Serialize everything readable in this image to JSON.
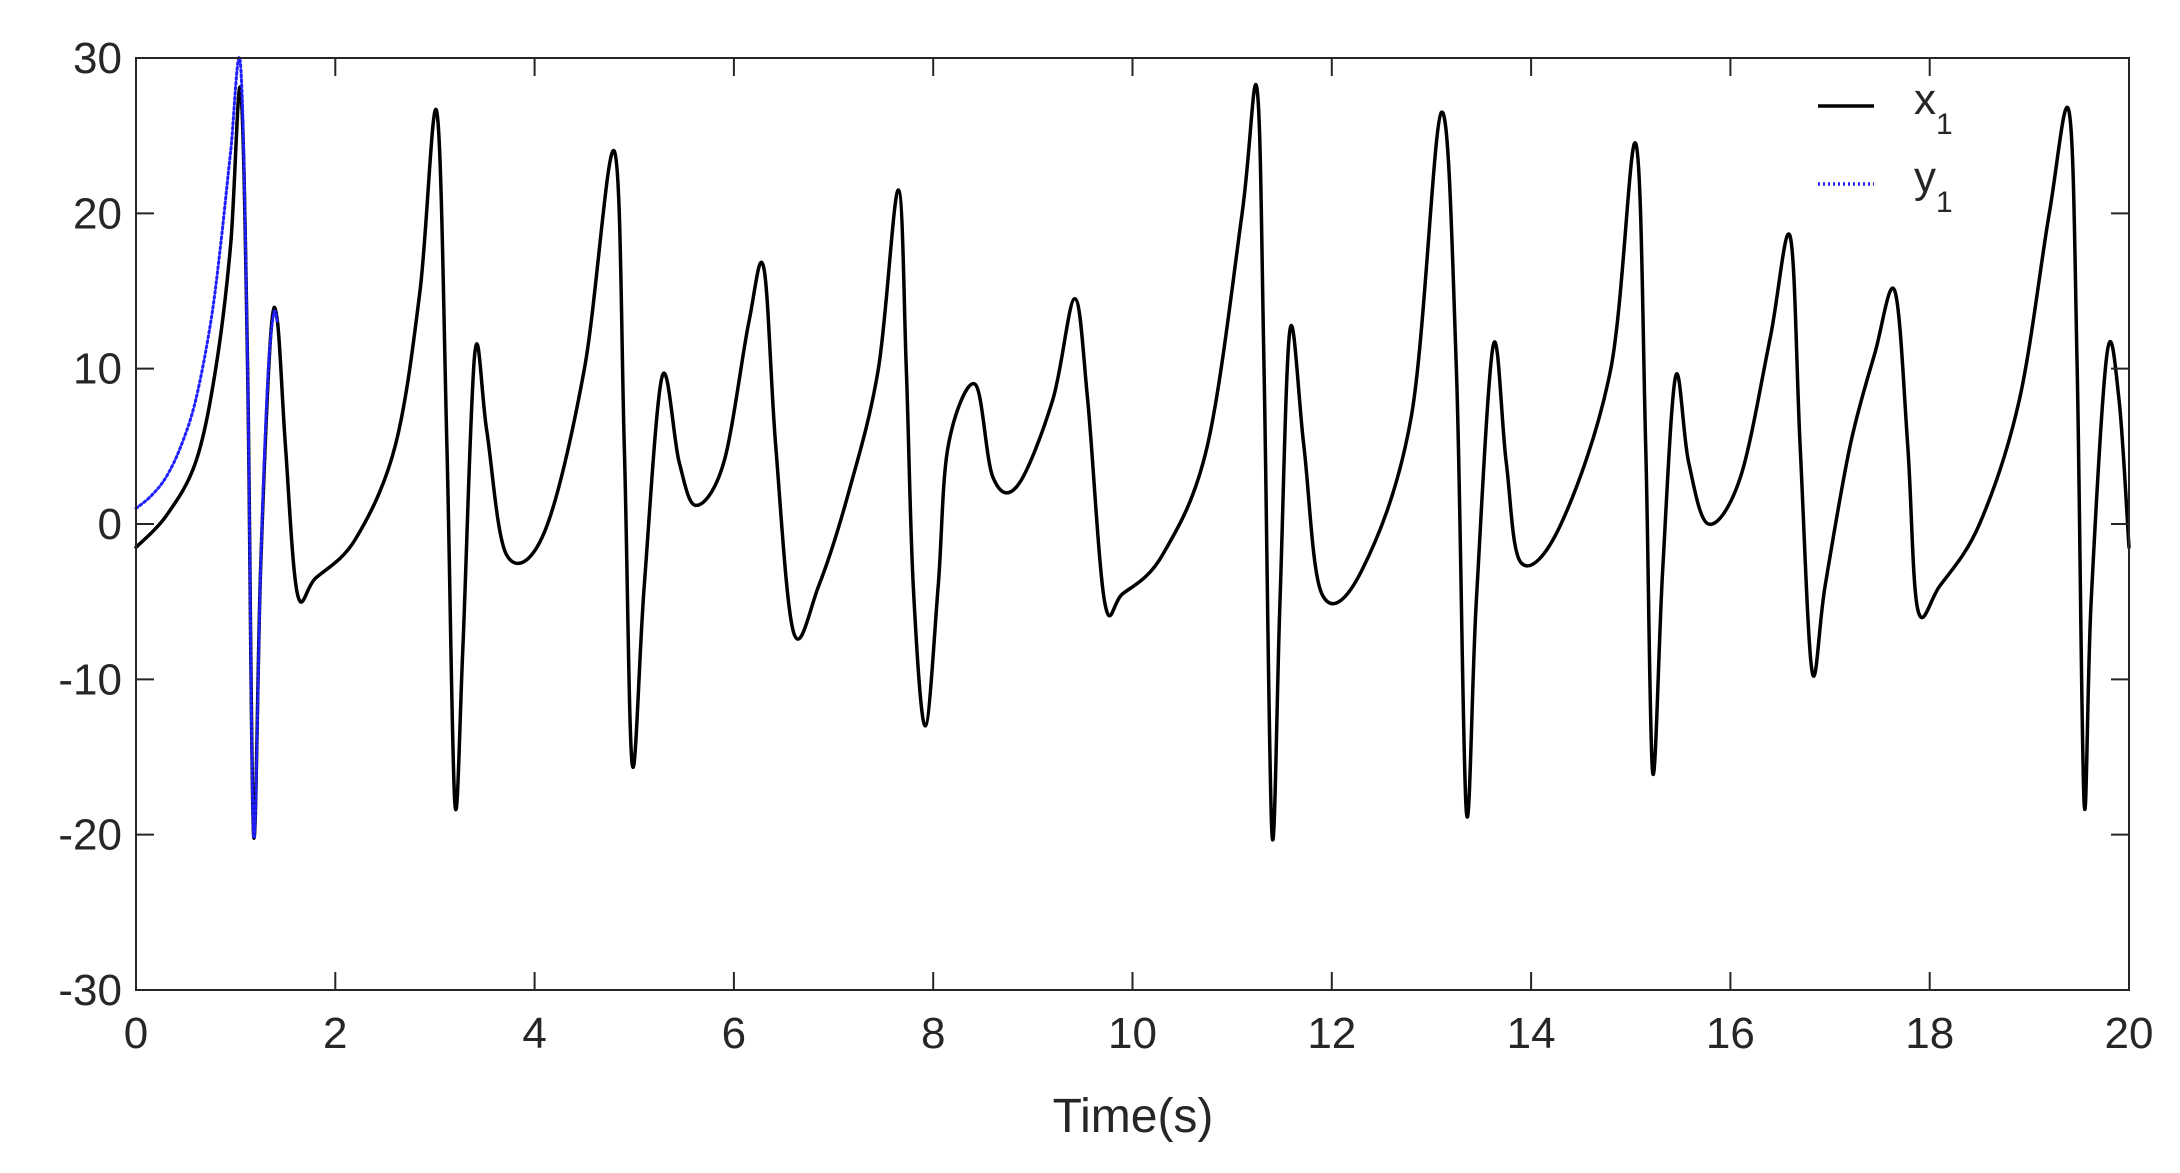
{
  "chart_data": {
    "type": "line",
    "xlabel": "Time(s)",
    "ylabel": "",
    "xlim": [
      0,
      20
    ],
    "ylim": [
      -30,
      30
    ],
    "xticks": [
      0,
      2,
      4,
      6,
      8,
      10,
      12,
      14,
      16,
      18,
      20
    ],
    "yticks": [
      -30,
      -20,
      -10,
      0,
      10,
      20,
      30
    ],
    "grid": false,
    "legend_position": "top-right",
    "series": [
      {
        "name": "x",
        "subscript": "1",
        "color": "#000000",
        "style": "solid",
        "x": [
          0,
          0.3,
          0.6,
          0.8,
          0.95,
          1.05,
          1.12,
          1.18,
          1.25,
          1.35,
          1.42,
          1.5,
          1.62,
          1.8,
          2.2,
          2.6,
          2.85,
          3.02,
          3.12,
          3.2,
          3.28,
          3.4,
          3.52,
          3.72,
          4.1,
          4.5,
          4.8,
          4.9,
          4.98,
          5.1,
          5.28,
          5.45,
          5.62,
          5.9,
          6.15,
          6.3,
          6.42,
          6.6,
          6.85,
          7.15,
          7.45,
          7.65,
          7.73,
          7.8,
          7.92,
          8.05,
          8.15,
          8.42,
          8.6,
          8.85,
          9.2,
          9.42,
          9.55,
          9.72,
          9.9,
          10.3,
          10.75,
          11.1,
          11.25,
          11.32,
          11.4,
          11.48,
          11.58,
          11.72,
          11.9,
          12.3,
          12.8,
          13.1,
          13.25,
          13.35,
          13.45,
          13.62,
          13.75,
          13.9,
          14.3,
          14.8,
          15.05,
          15.15,
          15.22,
          15.32,
          15.45,
          15.58,
          15.78,
          16.1,
          16.4,
          16.6,
          16.7,
          16.82,
          16.95,
          17.2,
          17.45,
          17.65,
          17.78,
          17.88,
          18.1,
          18.5,
          18.9,
          19.2,
          19.4,
          19.48,
          19.55,
          19.62,
          19.78,
          19.9,
          20.0
        ],
        "y": [
          -1.5,
          0.5,
          4,
          10,
          18,
          28,
          10,
          -20,
          -3,
          12,
          13,
          5,
          -4.5,
          -3.5,
          -1,
          5,
          15,
          26.5,
          5,
          -18,
          -8,
          11,
          6,
          -2,
          -0.5,
          10,
          24,
          5,
          -15.5,
          -4,
          9.5,
          4,
          1.2,
          4,
          13,
          16.5,
          5,
          -7,
          -4,
          2,
          10,
          21.5,
          10,
          -4,
          -13,
          -4,
          5,
          9,
          3,
          2.5,
          8,
          14.5,
          8,
          -5,
          -4.5,
          -2,
          5,
          20,
          28,
          10,
          -20,
          -5,
          12.5,
          5,
          -4.5,
          -3,
          7,
          26.5,
          10,
          -18.5,
          -5,
          11.5,
          4,
          -2.5,
          0,
          10,
          24.5,
          5,
          -16,
          -3,
          9.5,
          4,
          0,
          3,
          12,
          18.5,
          5,
          -9.5,
          -4,
          5,
          11,
          15,
          5,
          -5.5,
          -4,
          0,
          8,
          20,
          26.5,
          10,
          -18,
          -5,
          11,
          8,
          -1.5
        ]
      },
      {
        "name": "y",
        "subscript": "1",
        "color": "#1f1fff",
        "style": "dotted",
        "x": [
          0,
          0.15,
          0.3,
          0.45,
          0.6,
          0.75,
          0.85,
          0.95,
          1.05,
          1.12,
          1.18,
          1.25,
          1.32,
          1.38,
          1.42
        ],
        "y": [
          1,
          1.8,
          3,
          5,
          8,
          13,
          18,
          24,
          29.5,
          10,
          -20,
          -3,
          9,
          13.5,
          13
        ]
      }
    ]
  }
}
